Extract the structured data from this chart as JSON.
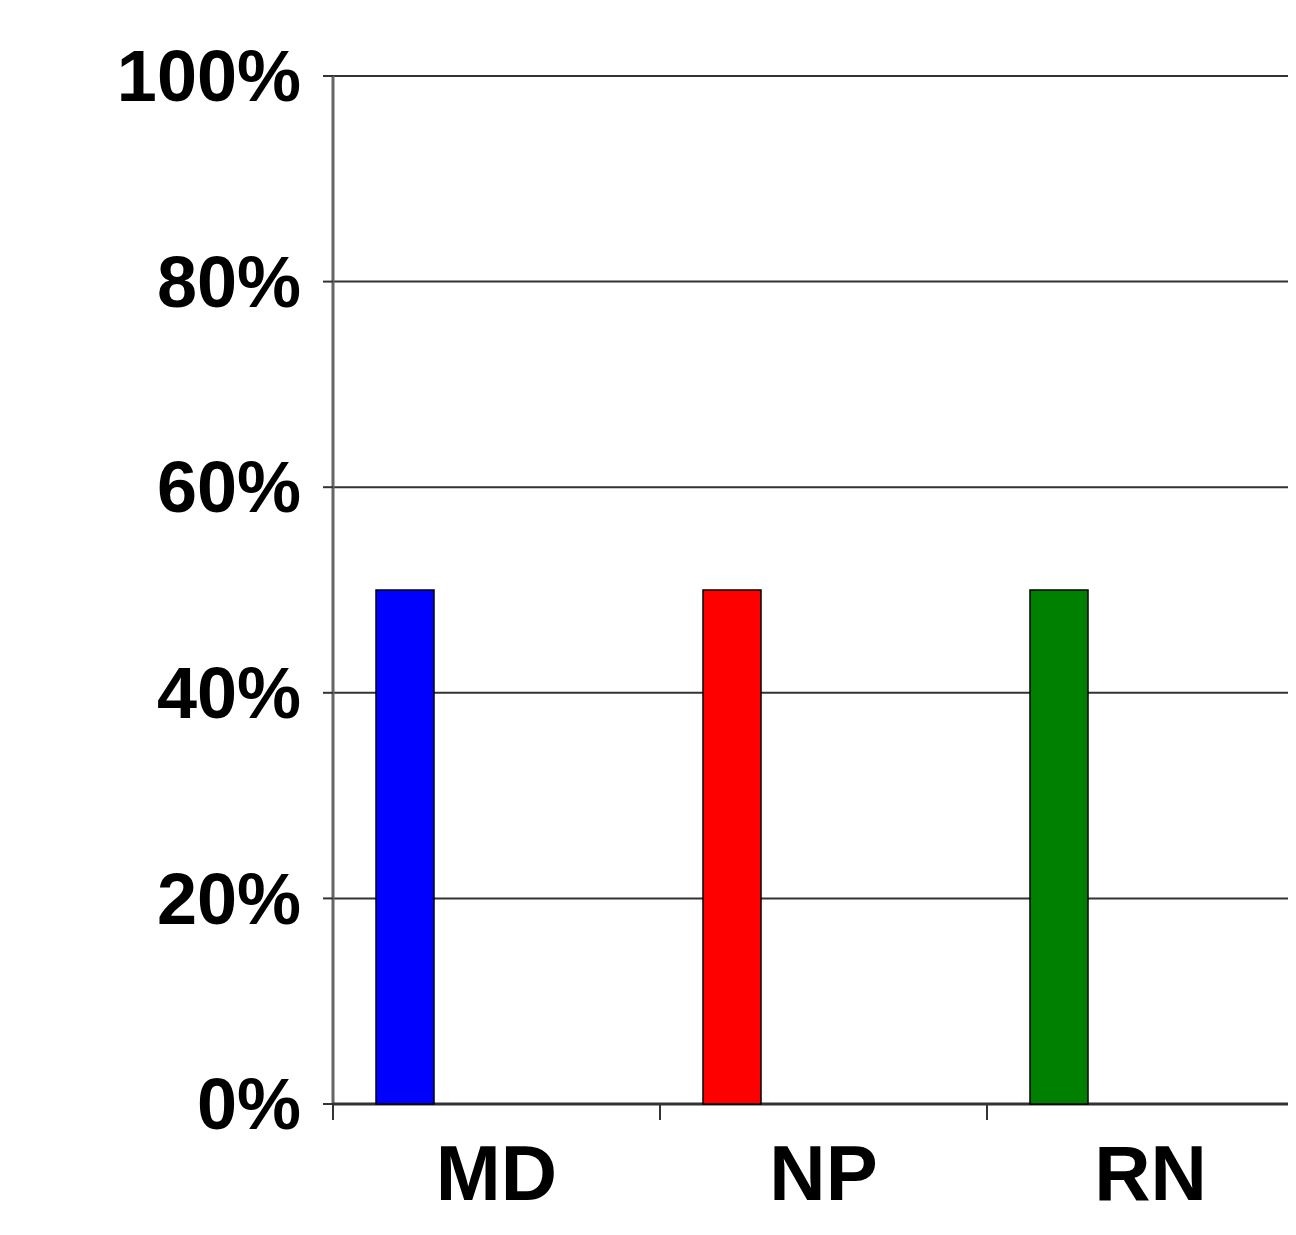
{
  "chart_data": {
    "type": "bar",
    "categories": [
      "MD",
      "NP",
      "RN"
    ],
    "values": [
      50,
      50,
      50
    ],
    "colors": [
      "#0000ff",
      "#ff0000",
      "#008000"
    ],
    "ylim": [
      0,
      100
    ],
    "yticks": [
      {
        "value": 0,
        "label": "0%"
      },
      {
        "value": 20,
        "label": "20%"
      },
      {
        "value": 40,
        "label": "40%"
      },
      {
        "value": 60,
        "label": "60%"
      },
      {
        "value": 80,
        "label": "80%"
      },
      {
        "value": 100,
        "label": "100%"
      }
    ],
    "grid": "y"
  }
}
